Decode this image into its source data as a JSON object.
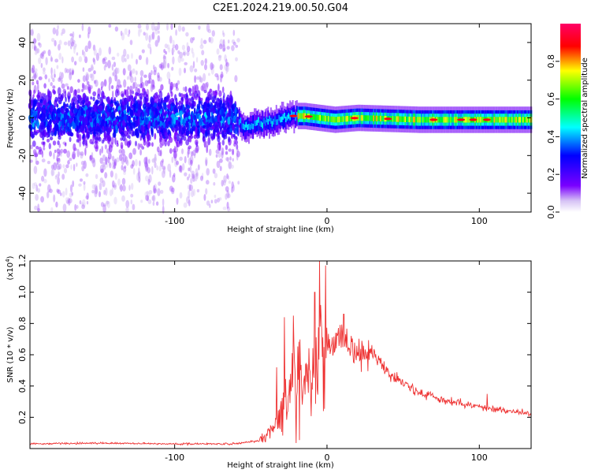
{
  "title": "C2E1.2024.219.00.50.G04",
  "chart_data": [
    {
      "type": "heatmap",
      "xlabel": "Height of straight line (km)",
      "ylabel": "Frequency (Hz)",
      "xlim": [
        -195,
        134
      ],
      "ylim": [
        -50,
        50
      ],
      "xticks": [
        -100,
        0,
        100
      ],
      "yticks": [
        -40,
        -20,
        0,
        20,
        40
      ],
      "xtick_labels": [
        "-100",
        "0",
        "100"
      ],
      "ytick_labels": [
        "-40",
        "-20",
        "0",
        "20",
        "40"
      ],
      "colorbar": {
        "label": "Normalized spectral amplitude",
        "range": [
          0,
          1
        ],
        "ticks": [
          0,
          0.2,
          0.4,
          0.6,
          0.8
        ],
        "tick_labels": [
          "0.0",
          "0.2",
          "0.4",
          "0.6",
          "0.8"
        ],
        "colormap": [
          "#ffffff",
          "#7a00ff",
          "#0000ff",
          "#00ffff",
          "#00ff00",
          "#ffff00",
          "#ff0000",
          "#ff0066"
        ]
      },
      "ridge_center_hz": {
        "x": [
          -195,
          -60,
          -55,
          -45,
          -35,
          -25,
          -15,
          -5,
          5,
          20,
          60,
          100,
          134
        ],
        "y": [
          0,
          0,
          -5,
          -3,
          -2,
          1,
          1,
          0,
          -1,
          0,
          -1,
          -1,
          -1
        ]
      },
      "regions": [
        {
          "x_range": [
            -195,
            -58
          ],
          "character": "broadband noise spread over full frequency range, strongest near 0 Hz",
          "peak_amplitude": 0.35
        },
        {
          "x_range": [
            -58,
            -20
          ],
          "character": "narrow band rising from about -6 Hz to +2 Hz",
          "peak_amplitude": 0.45
        },
        {
          "x_range": [
            -20,
            134
          ],
          "character": "narrow band near 0 Hz",
          "peak_amplitude": 0.8
        }
      ]
    },
    {
      "type": "line",
      "xlabel": "Height of straight line (km)",
      "ylabel": "SNR (10 * v/v)",
      "multiplier_label": "(x10",
      "multiplier_exp": "4",
      "multiplier_close": ")",
      "xlim": [
        -195,
        134
      ],
      "ylim": [
        0,
        1.2
      ],
      "xticks": [
        -100,
        0,
        100
      ],
      "yticks": [
        0.2,
        0.4,
        0.6,
        0.8,
        1.0,
        1.2
      ],
      "xtick_labels": [
        "-100",
        "0",
        "100"
      ],
      "ytick_labels": [
        "0.2",
        "0.4",
        "0.6",
        "0.8",
        "1.0",
        "1.2"
      ],
      "color": "#ee3333",
      "x": [
        -195,
        -150,
        -100,
        -60,
        -45,
        -40,
        -35,
        -30,
        -25,
        -20,
        -15,
        -10,
        -5,
        0,
        5,
        10,
        15,
        20,
        25,
        30,
        35,
        40,
        50,
        60,
        70,
        80,
        90,
        100,
        110,
        120,
        134
      ],
      "y": [
        0.03,
        0.035,
        0.03,
        0.03,
        0.05,
        0.08,
        0.15,
        0.25,
        0.35,
        0.45,
        0.45,
        0.55,
        0.6,
        0.65,
        0.68,
        0.67,
        0.62,
        0.6,
        0.6,
        0.62,
        0.55,
        0.48,
        0.42,
        0.36,
        0.33,
        0.3,
        0.28,
        0.27,
        0.25,
        0.24,
        0.22
      ],
      "spikes": [
        {
          "x": -5,
          "y": 1.2
        },
        {
          "x": -8,
          "y": 1.0
        },
        {
          "x": 11,
          "y": 0.86
        },
        {
          "x": -22,
          "y": 0.85
        },
        {
          "x": -28,
          "y": 0.84
        },
        {
          "x": -33,
          "y": 0.52
        },
        {
          "x": 105,
          "y": 0.35
        }
      ]
    }
  ]
}
